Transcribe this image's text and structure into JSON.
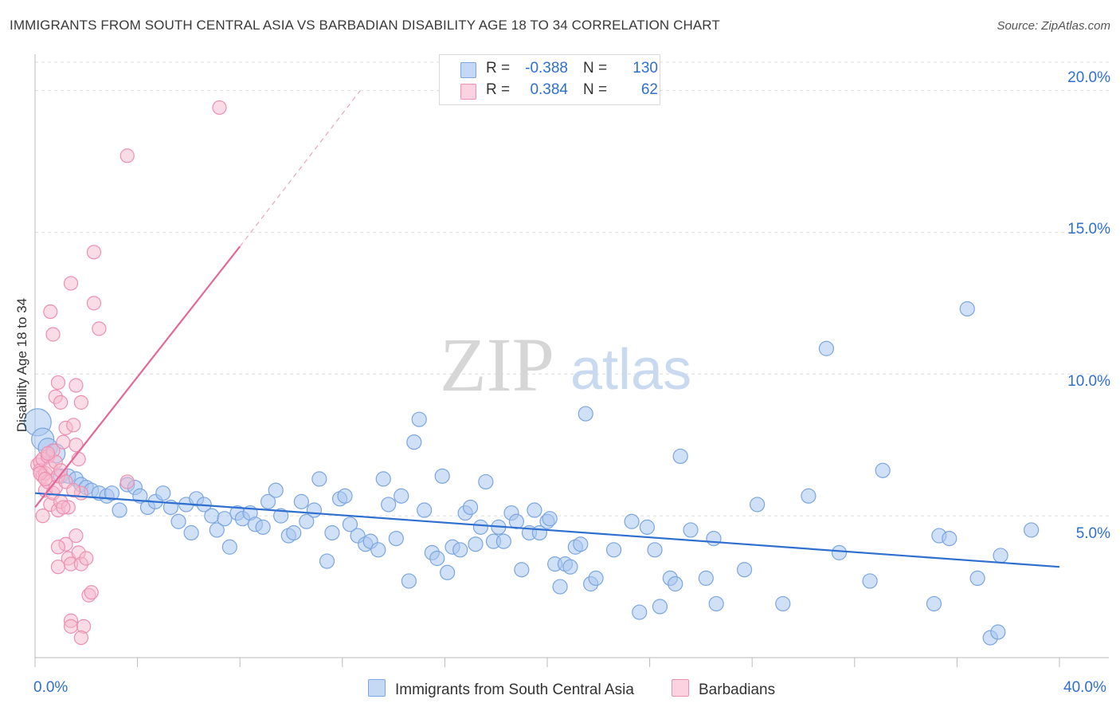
{
  "title": "IMMIGRANTS FROM SOUTH CENTRAL ASIA VS BARBADIAN DISABILITY AGE 18 TO 34 CORRELATION CHART",
  "source": "Source: ZipAtlas.com",
  "watermark": {
    "zip": "ZIP",
    "atlas": "atlas"
  },
  "legend": {
    "rows": [
      {
        "label": "R = ",
        "r": "-0.388",
        "n_label": "N = ",
        "n": "130",
        "color": "#7ba6e0"
      },
      {
        "label": "R = ",
        "r": "0.384",
        "n_label": "N = ",
        "n": "62",
        "color": "#f08ab0"
      }
    ]
  },
  "bottom_legend": {
    "series1": "Immigrants from South Central Asia",
    "series2": "Barbadians"
  },
  "colors": {
    "blue_fill": "#a9c6ee",
    "blue_stroke": "#7ba6e0",
    "blue_line": "#2f6fd0",
    "pink_fill": "#f6b9cd",
    "pink_stroke": "#ee8fb1",
    "pink_line": "#e4679a",
    "grid": "#dddddd",
    "tick_label": "#2f6fd0"
  },
  "chart_data": {
    "type": "scatter",
    "title": "IMMIGRANTS FROM SOUTH CENTRAL ASIA VS BARBADIAN DISABILITY AGE 18 TO 34 CORRELATION CHART",
    "xlabel": "",
    "ylabel": "Disability Age 18 to 34",
    "xlim": [
      0,
      40
    ],
    "ylim": [
      0,
      21
    ],
    "x_tick_labels": [
      "0.0%",
      "40.0%"
    ],
    "y_tick_labels": [
      "5.0%",
      "10.0%",
      "15.0%",
      "20.0%"
    ],
    "y_ticks": [
      5,
      10,
      15,
      20
    ],
    "grid": true,
    "legend_position": "top-center",
    "series": [
      {
        "name": "Immigrants from South Central Asia",
        "trend": {
          "x": [
            0,
            40
          ],
          "y": [
            5.8,
            3.2
          ],
          "style": "solid"
        },
        "points": [
          [
            0.1,
            8.3
          ],
          [
            0.3,
            7.7
          ],
          [
            0.5,
            7.4
          ],
          [
            0.8,
            7.2
          ],
          [
            1.0,
            6.4
          ],
          [
            1.3,
            6.4
          ],
          [
            1.6,
            6.3
          ],
          [
            1.8,
            6.1
          ],
          [
            2.0,
            6.0
          ],
          [
            2.2,
            5.9
          ],
          [
            2.5,
            5.8
          ],
          [
            2.8,
            5.7
          ],
          [
            3.0,
            5.8
          ],
          [
            3.3,
            5.2
          ],
          [
            3.6,
            6.1
          ],
          [
            3.9,
            6.0
          ],
          [
            4.1,
            5.7
          ],
          [
            4.4,
            5.3
          ],
          [
            4.7,
            5.5
          ],
          [
            5.0,
            5.8
          ],
          [
            5.3,
            5.3
          ],
          [
            5.6,
            4.8
          ],
          [
            5.9,
            5.4
          ],
          [
            6.1,
            4.4
          ],
          [
            6.3,
            5.6
          ],
          [
            6.6,
            5.4
          ],
          [
            6.9,
            5.0
          ],
          [
            7.1,
            4.5
          ],
          [
            7.4,
            4.9
          ],
          [
            7.6,
            3.9
          ],
          [
            7.9,
            5.1
          ],
          [
            8.1,
            4.9
          ],
          [
            8.4,
            5.1
          ],
          [
            8.6,
            4.7
          ],
          [
            8.9,
            4.6
          ],
          [
            9.1,
            5.5
          ],
          [
            9.4,
            5.9
          ],
          [
            9.6,
            5.0
          ],
          [
            9.9,
            4.3
          ],
          [
            10.1,
            4.4
          ],
          [
            10.4,
            5.5
          ],
          [
            10.6,
            4.8
          ],
          [
            10.9,
            5.2
          ],
          [
            11.1,
            6.3
          ],
          [
            11.4,
            3.4
          ],
          [
            11.6,
            4.4
          ],
          [
            11.9,
            5.6
          ],
          [
            12.1,
            5.7
          ],
          [
            12.3,
            4.7
          ],
          [
            12.6,
            4.3
          ],
          [
            12.9,
            4.0
          ],
          [
            13.1,
            4.1
          ],
          [
            13.4,
            3.8
          ],
          [
            13.6,
            6.3
          ],
          [
            13.8,
            5.4
          ],
          [
            14.1,
            4.2
          ],
          [
            14.3,
            5.7
          ],
          [
            14.6,
            2.7
          ],
          [
            14.8,
            7.6
          ],
          [
            15.0,
            8.4
          ],
          [
            15.2,
            5.2
          ],
          [
            15.5,
            3.7
          ],
          [
            15.7,
            3.5
          ],
          [
            15.9,
            6.4
          ],
          [
            16.1,
            3.0
          ],
          [
            16.3,
            3.9
          ],
          [
            16.6,
            3.8
          ],
          [
            16.8,
            5.1
          ],
          [
            17.0,
            5.3
          ],
          [
            17.2,
            4.0
          ],
          [
            17.4,
            4.6
          ],
          [
            17.6,
            6.2
          ],
          [
            17.9,
            4.1
          ],
          [
            18.1,
            4.6
          ],
          [
            18.3,
            4.1
          ],
          [
            18.6,
            5.1
          ],
          [
            18.8,
            4.8
          ],
          [
            19.0,
            3.1
          ],
          [
            19.3,
            4.4
          ],
          [
            19.5,
            5.2
          ],
          [
            19.7,
            4.4
          ],
          [
            20.0,
            4.8
          ],
          [
            20.1,
            4.9
          ],
          [
            20.3,
            3.3
          ],
          [
            20.5,
            2.5
          ],
          [
            20.7,
            3.3
          ],
          [
            20.9,
            3.2
          ],
          [
            21.1,
            3.9
          ],
          [
            21.3,
            4.0
          ],
          [
            21.5,
            8.6
          ],
          [
            21.7,
            2.6
          ],
          [
            21.9,
            2.8
          ],
          [
            22.6,
            3.8
          ],
          [
            23.3,
            4.8
          ],
          [
            23.6,
            1.6
          ],
          [
            23.9,
            4.6
          ],
          [
            24.2,
            3.8
          ],
          [
            24.4,
            1.8
          ],
          [
            24.8,
            2.8
          ],
          [
            25.0,
            2.6
          ],
          [
            25.2,
            7.1
          ],
          [
            25.6,
            4.5
          ],
          [
            26.2,
            2.8
          ],
          [
            26.5,
            4.2
          ],
          [
            26.6,
            1.9
          ],
          [
            27.7,
            3.1
          ],
          [
            28.2,
            5.4
          ],
          [
            29.2,
            1.9
          ],
          [
            30.2,
            5.7
          ],
          [
            30.9,
            10.9
          ],
          [
            31.4,
            3.7
          ],
          [
            32.6,
            2.7
          ],
          [
            33.1,
            6.6
          ],
          [
            35.1,
            1.9
          ],
          [
            35.3,
            4.3
          ],
          [
            35.7,
            4.2
          ],
          [
            36.4,
            12.3
          ],
          [
            36.8,
            2.8
          ],
          [
            37.3,
            0.7
          ],
          [
            37.7,
            3.6
          ],
          [
            37.6,
            0.9
          ],
          [
            38.9,
            4.5
          ]
        ]
      },
      {
        "name": "Barbadians",
        "trend": {
          "x": [
            0,
            8.0
          ],
          "y": [
            5.3,
            14.5
          ],
          "style": "solid",
          "extension": {
            "x": [
              8.0,
              12.7
            ],
            "y": [
              14.5,
              20.0
            ],
            "style": "dashed"
          }
        },
        "points": [
          [
            0.1,
            6.8
          ],
          [
            0.2,
            6.9
          ],
          [
            0.2,
            6.6
          ],
          [
            0.3,
            6.4
          ],
          [
            0.3,
            7.0
          ],
          [
            0.4,
            5.9
          ],
          [
            0.4,
            6.5
          ],
          [
            0.5,
            6.2
          ],
          [
            0.5,
            7.1
          ],
          [
            0.6,
            6.7
          ],
          [
            0.6,
            5.4
          ],
          [
            0.7,
            5.8
          ],
          [
            0.7,
            7.3
          ],
          [
            0.8,
            6.0
          ],
          [
            0.8,
            6.9
          ],
          [
            0.9,
            5.2
          ],
          [
            0.9,
            6.4
          ],
          [
            1.0,
            6.6
          ],
          [
            1.0,
            5.5
          ],
          [
            1.1,
            7.6
          ],
          [
            1.2,
            6.2
          ],
          [
            1.3,
            5.3
          ],
          [
            0.2,
            6.5
          ],
          [
            0.3,
            5.0
          ],
          [
            0.4,
            6.3
          ],
          [
            0.6,
            12.2
          ],
          [
            0.7,
            11.4
          ],
          [
            0.8,
            9.2
          ],
          [
            0.9,
            9.7
          ],
          [
            1.0,
            9.0
          ],
          [
            1.2,
            8.1
          ],
          [
            1.5,
            8.2
          ],
          [
            1.6,
            7.5
          ],
          [
            1.7,
            7.0
          ],
          [
            1.8,
            5.8
          ],
          [
            1.4,
            13.2
          ],
          [
            1.5,
            5.9
          ],
          [
            1.6,
            4.3
          ],
          [
            1.2,
            4.0
          ],
          [
            0.9,
            3.9
          ],
          [
            0.9,
            3.2
          ],
          [
            1.3,
            3.5
          ],
          [
            1.4,
            3.3
          ],
          [
            1.7,
            3.7
          ],
          [
            1.8,
            3.3
          ],
          [
            2.0,
            3.5
          ],
          [
            2.1,
            2.2
          ],
          [
            2.2,
            2.3
          ],
          [
            1.4,
            1.3
          ],
          [
            1.4,
            1.1
          ],
          [
            1.9,
            1.1
          ],
          [
            1.8,
            0.7
          ],
          [
            2.3,
            14.3
          ],
          [
            2.3,
            12.5
          ],
          [
            2.5,
            11.6
          ],
          [
            1.6,
            9.6
          ],
          [
            1.8,
            9.0
          ],
          [
            3.6,
            6.2
          ],
          [
            3.6,
            17.7
          ],
          [
            7.2,
            19.4
          ],
          [
            0.5,
            7.2
          ],
          [
            1.1,
            5.3
          ]
        ]
      }
    ]
  }
}
